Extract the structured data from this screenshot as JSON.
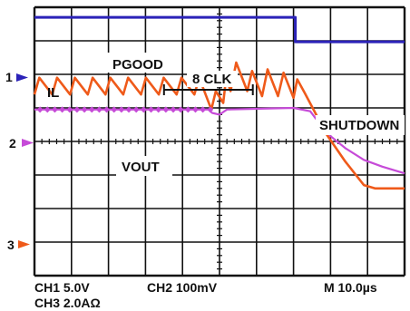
{
  "colors": {
    "background": "#ffffff",
    "screen_bg": "#ffffff",
    "grid": "#111111",
    "pgood": "#2b22b8",
    "il": "#ef5a1a",
    "vout": "#c64bd8"
  },
  "channel_markers": {
    "ch1": "1",
    "ch2": "2",
    "ch3": "3",
    "ch1_icon": "arrow-right-icon",
    "ch2_icon": "arrow-right-icon",
    "ch3_icon": "arrow-right-icon"
  },
  "readout": {
    "ch1": "CH1 5.0V",
    "ch2": "CH2 100mV",
    "ch3": "CH3 2.0AΩ",
    "timebase": "M 10.0µs"
  },
  "chart_data": {
    "type": "line",
    "grid": true,
    "divisions": {
      "x": 10,
      "y": 8
    },
    "xlim": [
      0,
      100
    ],
    "xunit": "µs",
    "annotations": [
      {
        "text": "PGOOD",
        "series": "PGOOD"
      },
      {
        "text": "IL",
        "series": "IL"
      },
      {
        "text": "VOUT",
        "series": "VOUT"
      },
      {
        "text": "SHUTDOWN"
      },
      {
        "text": "8 CLK",
        "x_range": [
          35,
          59
        ]
      }
    ],
    "series": [
      {
        "name": "PGOOD",
        "channel": "CH1",
        "scale": "5.0V/div",
        "points_div": [
          [
            0,
            3.7
          ],
          [
            70.5,
            3.7
          ],
          [
            70.5,
            2.97
          ],
          [
            100,
            2.97
          ]
        ]
      },
      {
        "name": "IL",
        "channel": "CH3",
        "scale": "2.0A/div",
        "points_div": [
          [
            0,
            1.4
          ],
          [
            1.3,
            1.9
          ],
          [
            4.8,
            1.4
          ],
          [
            6.1,
            1.9
          ],
          [
            9.6,
            1.4
          ],
          [
            10.9,
            1.9
          ],
          [
            14.4,
            1.4
          ],
          [
            15.7,
            1.9
          ],
          [
            19.2,
            1.4
          ],
          [
            20.5,
            1.9
          ],
          [
            24.0,
            1.4
          ],
          [
            25.3,
            1.9
          ],
          [
            28.8,
            1.4
          ],
          [
            30.1,
            1.9
          ],
          [
            33.6,
            1.4
          ],
          [
            34.9,
            1.9
          ],
          [
            38.4,
            1.4
          ],
          [
            39.7,
            1.9
          ],
          [
            43.2,
            1.4
          ],
          [
            44.5,
            1.9
          ],
          [
            47.8,
            0.95
          ],
          [
            49.0,
            1.5
          ],
          [
            51.0,
            1.15
          ],
          [
            51.8,
            1.9
          ],
          [
            53.0,
            1.5
          ],
          [
            54.5,
            2.35
          ],
          [
            57.5,
            1.5
          ],
          [
            58.8,
            2.1
          ],
          [
            61.5,
            1.35
          ],
          [
            63.0,
            2.15
          ],
          [
            65.8,
            1.35
          ],
          [
            67.3,
            2.05
          ],
          [
            70.0,
            1.3
          ],
          [
            71.0,
            1.85
          ],
          [
            73.0,
            1.45
          ],
          [
            79.0,
            0.2
          ],
          [
            84.0,
            -0.6
          ],
          [
            89.0,
            -1.3
          ],
          [
            92.0,
            -1.4
          ],
          [
            100,
            -1.4
          ]
        ]
      },
      {
        "name": "VOUT",
        "channel": "CH2",
        "scale": "100mV/div",
        "points_div": [
          [
            0,
            0.95
          ],
          [
            47.0,
            0.95
          ],
          [
            48.0,
            0.85
          ],
          [
            50.0,
            0.8
          ],
          [
            52.0,
            0.95
          ],
          [
            70.0,
            1.0
          ],
          [
            74.5,
            0.9
          ],
          [
            79.0,
            0.25
          ],
          [
            84.0,
            -0.2
          ],
          [
            89.0,
            -0.55
          ],
          [
            94.0,
            -0.75
          ],
          [
            100,
            -0.95
          ]
        ]
      }
    ]
  }
}
